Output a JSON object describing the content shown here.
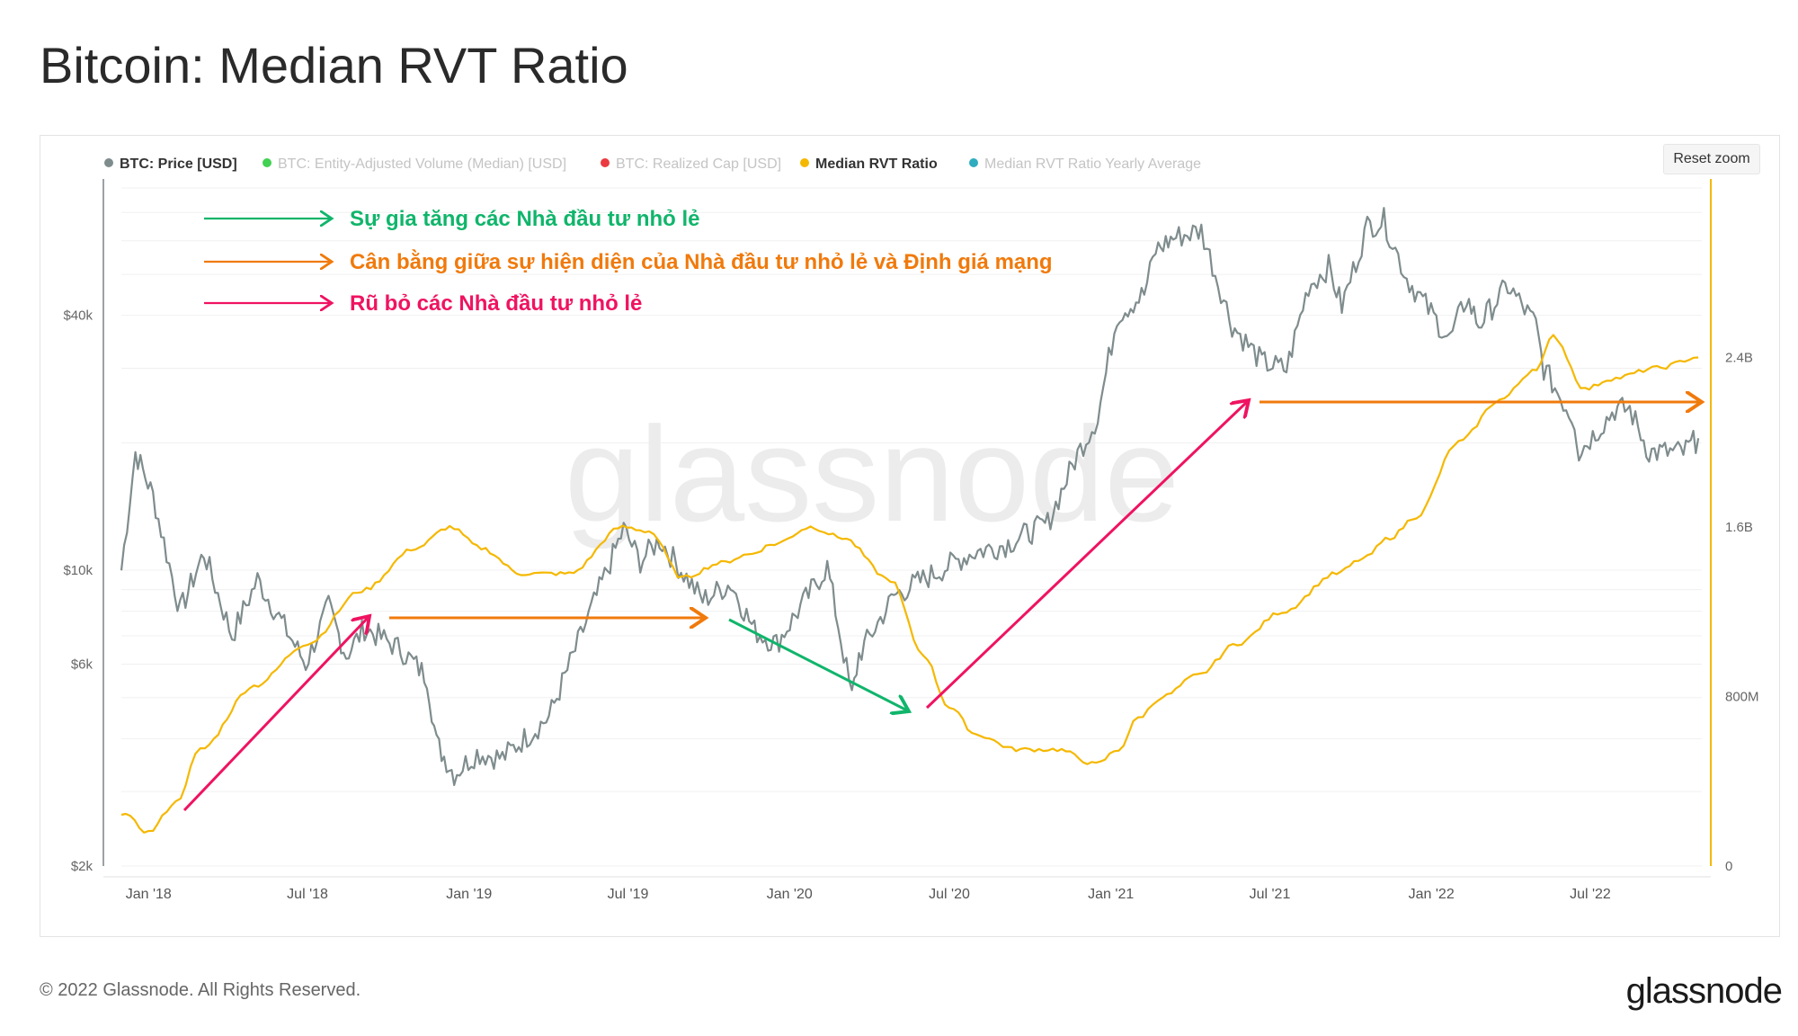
{
  "title": "Bitcoin: Median RVT Ratio",
  "reset_zoom": "Reset zoom",
  "footer": "© 2022 Glassnode. All Rights Reserved.",
  "logo": "glassnode",
  "watermark": "glassnode",
  "legend": [
    {
      "label": "BTC: Price [USD]",
      "color": "#7f8c8d",
      "active": true
    },
    {
      "label": "BTC: Entity-Adjusted Volume (Median) [USD]",
      "color": "#2ecc40",
      "active": false
    },
    {
      "label": "BTC: Realized Cap [USD]",
      "color": "#e8262b",
      "active": false
    },
    {
      "label": "Median RVT Ratio",
      "color": "#f5b800",
      "active": true
    },
    {
      "label": "Median RVT Ratio Yearly Average",
      "color": "#1aa3b8",
      "active": false
    }
  ],
  "annotations": [
    {
      "text": "Sự gia tăng các Nhà đầu tư nhỏ lẻ",
      "color": "#10b56b"
    },
    {
      "text": "Cân bằng giữa sự hiện diện của Nhà đầu tư nhỏ lẻ và Định giá mạng",
      "color": "#f07a0c"
    },
    {
      "text": "Rũ bỏ các Nhà đầu tư nhỏ lẻ",
      "color": "#ef1361"
    }
  ],
  "chart_data": {
    "type": "line",
    "x_ticks": [
      "Jan '18",
      "Jul '18",
      "Jan '19",
      "Jul '19",
      "Jan '20",
      "Jul '20",
      "Jan '21",
      "Jul '21",
      "Jan '22",
      "Jul '22"
    ],
    "y_left": {
      "scale": "log",
      "ticks": [
        "$2k",
        "$6k",
        "$10k",
        "$40k"
      ],
      "tick_values": [
        2000,
        6000,
        10000,
        40000
      ]
    },
    "y_right": {
      "ticks": [
        "0",
        "800M",
        "1.6B",
        "2.4B"
      ],
      "tick_values": [
        0,
        0.8,
        1.6,
        2.4
      ],
      "unit": "B"
    },
    "series": [
      {
        "name": "BTC: Price [USD]",
        "axis": "left",
        "color": "#7f8c8d",
        "x": [
          "2017-12-01",
          "2017-12-17",
          "2018-01-06",
          "2018-02-06",
          "2018-03-05",
          "2018-04-06",
          "2018-05-05",
          "2018-06-29",
          "2018-07-25",
          "2018-08-14",
          "2018-09-04",
          "2018-10-15",
          "2018-11-14",
          "2018-11-25",
          "2018-12-15",
          "2019-01-10",
          "2019-02-08",
          "2019-04-02",
          "2019-05-14",
          "2019-06-26",
          "2019-07-15",
          "2019-08-06",
          "2019-09-24",
          "2019-10-26",
          "2019-11-22",
          "2019-12-17",
          "2020-02-13",
          "2020-03-12",
          "2020-03-20",
          "2020-04-29",
          "2020-06-01",
          "2020-07-27",
          "2020-09-03",
          "2020-10-21",
          "2020-11-24",
          "2020-12-17",
          "2021-01-08",
          "2021-02-08",
          "2021-02-21",
          "2021-03-13",
          "2021-04-14",
          "2021-05-19",
          "2021-06-22",
          "2021-07-20",
          "2021-08-14",
          "2021-09-06",
          "2021-09-21",
          "2021-10-20",
          "2021-11-08",
          "2021-12-04",
          "2022-01-22",
          "2022-02-10",
          "2022-02-24",
          "2022-03-29",
          "2022-04-30",
          "2022-05-09",
          "2022-06-13",
          "2022-06-18",
          "2022-07-29",
          "2022-08-15",
          "2022-09-06",
          "2022-10-15",
          "2022-11-01"
        ],
        "y": [
          10000,
          19000,
          15000,
          8000,
          11000,
          7000,
          9500,
          6000,
          8200,
          6300,
          7300,
          6500,
          5600,
          3900,
          3300,
          3700,
          3600,
          4500,
          7500,
          12500,
          10500,
          11800,
          8500,
          9300,
          7200,
          6700,
          10200,
          5000,
          6300,
          8700,
          9500,
          11000,
          11500,
          12900,
          18800,
          23000,
          40000,
          45000,
          57000,
          61000,
          63500,
          38000,
          31000,
          29800,
          47000,
          52000,
          42000,
          65000,
          67000,
          49000,
          35000,
          44000,
          38000,
          47000,
          38000,
          30000,
          22500,
          19000,
          24000,
          24000,
          19000,
          19000,
          20500
        ]
      },
      {
        "name": "Median RVT Ratio",
        "axis": "right",
        "color": "#f5b800",
        "x": [
          "2017-12-01",
          "2018-01-01",
          "2018-02-01",
          "2018-03-01",
          "2018-05-01",
          "2018-07-01",
          "2018-09-01",
          "2018-11-01",
          "2018-12-10",
          "2019-01-15",
          "2019-03-01",
          "2019-04-25",
          "2019-06-25",
          "2019-07-25",
          "2019-09-01",
          "2019-10-15",
          "2019-11-15",
          "2019-12-15",
          "2020-01-25",
          "2020-03-01",
          "2020-04-25",
          "2020-06-01",
          "2020-07-01",
          "2020-08-01",
          "2020-09-15",
          "2020-11-01",
          "2020-12-15",
          "2021-01-10",
          "2021-02-01",
          "2021-03-01",
          "2021-04-10",
          "2021-05-25",
          "2021-07-15",
          "2021-09-15",
          "2021-10-15",
          "2021-11-15",
          "2021-12-15",
          "2022-02-01",
          "2022-03-20",
          "2022-05-01",
          "2022-05-20",
          "2022-06-25",
          "2022-07-25",
          "2022-09-15",
          "2022-11-01"
        ],
        "y": [
          0.25,
          0.16,
          0.3,
          0.55,
          0.85,
          1.05,
          1.3,
          1.5,
          1.6,
          1.5,
          1.38,
          1.38,
          1.6,
          1.58,
          1.36,
          1.43,
          1.47,
          1.52,
          1.6,
          1.55,
          1.35,
          1.0,
          0.75,
          0.62,
          0.55,
          0.55,
          0.48,
          0.55,
          0.7,
          0.8,
          0.9,
          1.05,
          1.2,
          1.38,
          1.45,
          1.55,
          1.65,
          2.0,
          2.2,
          2.35,
          2.5,
          2.25,
          2.3,
          2.35,
          2.4
        ]
      }
    ]
  }
}
